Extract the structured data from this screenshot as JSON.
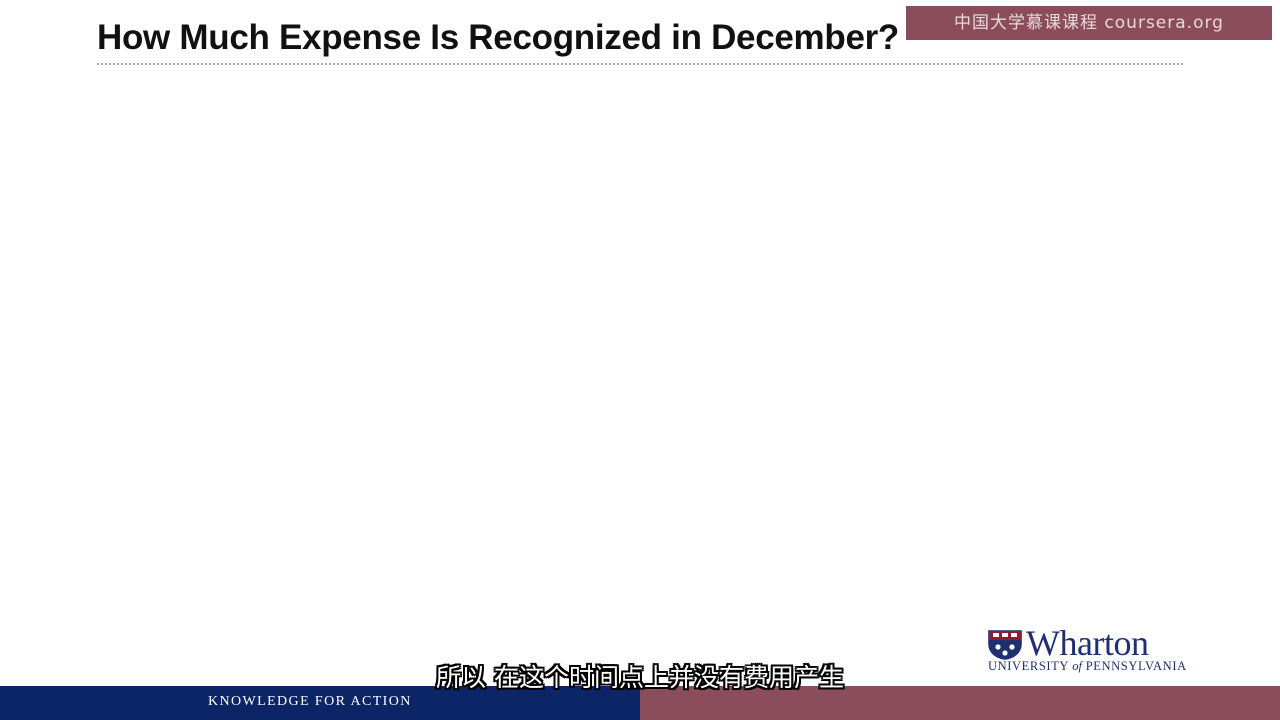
{
  "slide": {
    "title": "How Much Expense Is Recognized in December?"
  },
  "watermark": {
    "text": "中国大学慕课课程 coursera.org"
  },
  "logo": {
    "wordmark": "Wharton",
    "subline_pre": "UNIVERSITY",
    "subline_of": "of",
    "subline_post": "PENNSYLVANIA",
    "icon": "penn-shield-icon"
  },
  "footer": {
    "tagline": "KNOWLEDGE FOR ACTION",
    "colors": {
      "navy": "#0c2566",
      "maroon": "#8b4d5c"
    }
  },
  "subtitle": {
    "text": "所以 在这个时间点上并没有费用产生"
  }
}
